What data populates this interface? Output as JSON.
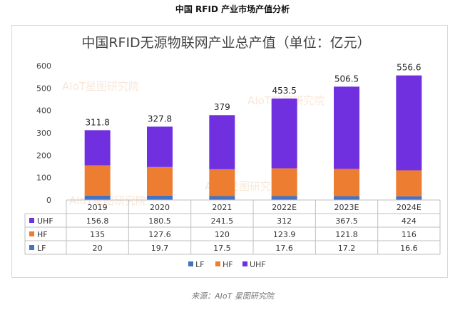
{
  "page": {
    "title": "中国 RFID 产业市场产值分析",
    "source": "来源：AIoT 星图研究院"
  },
  "watermark": {
    "text": "AIoT星图研究院"
  },
  "colors": {
    "LF": "#4472c4",
    "HF": "#ed7d31",
    "UHF": "#7030e0"
  },
  "chart_data": {
    "type": "bar",
    "stacked": true,
    "title": "中国RFID无源物联网产业总产值（单位：亿元）",
    "categories": [
      "2019",
      "2020",
      "2021",
      "2022E",
      "2023E",
      "2024E"
    ],
    "series": [
      {
        "name": "LF",
        "values": [
          20,
          19.7,
          17.5,
          17.6,
          17.2,
          16.6
        ]
      },
      {
        "name": "HF",
        "values": [
          135,
          127.6,
          120,
          123.9,
          121.8,
          116
        ]
      },
      {
        "name": "UHF",
        "values": [
          156.8,
          180.5,
          241.5,
          312,
          367.5,
          424
        ]
      }
    ],
    "totals": [
      "311.8",
      "327.8",
      "379",
      "453.5",
      "506.5",
      "556.6"
    ],
    "ylim": [
      0,
      600
    ],
    "yticks": [
      0,
      100,
      200,
      300,
      400,
      500,
      600
    ],
    "grid": false,
    "legend": "bottom",
    "data_table": {
      "rows": [
        {
          "name": "UHF",
          "cells": [
            "156.8",
            "180.5",
            "241.5",
            "312",
            "367.5",
            "424"
          ]
        },
        {
          "name": "HF",
          "cells": [
            "135",
            "127.6",
            "120",
            "123.9",
            "121.8",
            "116"
          ]
        },
        {
          "name": "LF",
          "cells": [
            "20",
            "19.7",
            "17.5",
            "17.6",
            "17.2",
            "16.6"
          ]
        }
      ]
    }
  }
}
